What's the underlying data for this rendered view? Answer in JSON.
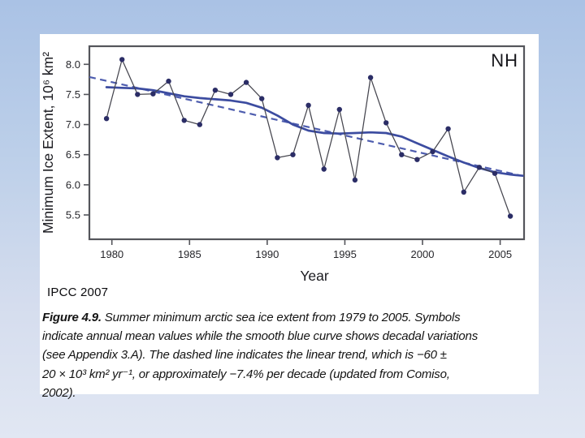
{
  "slide": {
    "credit": "IPCC 2007"
  },
  "chart_data": {
    "type": "line",
    "title": "",
    "region_label": "NH",
    "xlabel": "Year",
    "ylabel": "Minimum Ice Extent, 10⁶ km²",
    "x": [
      1979,
      1980,
      1981,
      1982,
      1983,
      1984,
      1985,
      1986,
      1987,
      1988,
      1989,
      1990,
      1991,
      1992,
      1993,
      1994,
      1995,
      1996,
      1997,
      1998,
      1999,
      2000,
      2001,
      2002,
      2003,
      2004,
      2005
    ],
    "series": [
      {
        "name": "annual mean minimum ice extent",
        "style": "black line with dark navy circle markers",
        "values": [
          7.1,
          8.08,
          7.5,
          7.51,
          7.72,
          7.07,
          7.0,
          7.57,
          7.5,
          7.7,
          7.43,
          6.45,
          6.5,
          7.32,
          6.26,
          7.25,
          6.08,
          7.78,
          7.03,
          6.5,
          6.42,
          6.55,
          6.93,
          5.88,
          6.29,
          6.19,
          5.48
        ]
      },
      {
        "name": "decadal variations (smooth blue curve)",
        "style": "thick solid blue curve",
        "points": [
          [
            1979,
            7.62
          ],
          [
            1980,
            7.61
          ],
          [
            1981,
            7.6
          ],
          [
            1982,
            7.57
          ],
          [
            1983,
            7.52
          ],
          [
            1984,
            7.47
          ],
          [
            1985,
            7.44
          ],
          [
            1986,
            7.42
          ],
          [
            1987,
            7.4
          ],
          [
            1988,
            7.36
          ],
          [
            1989,
            7.28
          ],
          [
            1990,
            7.15
          ],
          [
            1991,
            7.0
          ],
          [
            1992,
            6.9
          ],
          [
            1993,
            6.86
          ],
          [
            1994,
            6.85
          ],
          [
            1995,
            6.86
          ],
          [
            1996,
            6.87
          ],
          [
            1997,
            6.86
          ],
          [
            1998,
            6.8
          ],
          [
            1999,
            6.69
          ],
          [
            2000,
            6.58
          ],
          [
            2001,
            6.47
          ],
          [
            2002,
            6.37
          ],
          [
            2003,
            6.28
          ],
          [
            2004,
            6.21
          ],
          [
            2005,
            6.17
          ],
          [
            2005.8,
            6.15
          ]
        ]
      },
      {
        "name": "linear trend (dashed)",
        "style": "dashed blue straight line",
        "trend": {
          "start_year": 1978.55,
          "start_value": 7.79,
          "end_year": 2006.2,
          "end_value": 6.16,
          "slope_per_year_1e6_km2": -0.06
        }
      }
    ],
    "xticks": [
      1980,
      1985,
      1990,
      1995,
      2000,
      2005
    ],
    "yticks": [
      "5.5",
      "6.0",
      "6.5",
      "7.0",
      "7.5",
      "8.0"
    ],
    "ylim": [
      5.2,
      8.3
    ],
    "xlim": [
      1978.55,
      2006.55
    ],
    "grid": false,
    "legend": "none",
    "colors": {
      "annual_line": "#45454e",
      "marker": "#2b2d66",
      "smooth_curve": "#3c4ca0",
      "trend_dashed": "#4d5cae",
      "frame": "#54555b",
      "tick_text": "#26262b",
      "region_label": "#17171c"
    }
  },
  "caption": {
    "lines": [
      {
        "parts": [
          {
            "text": "Figure 4.9.",
            "bold": true
          },
          {
            "text": " Summer minimum arctic sea ice extent from 1979 to 2005. Symbols"
          }
        ]
      },
      {
        "parts": [
          {
            "text": "indicate annual mean values while the smooth blue curve shows decadal variations"
          }
        ]
      },
      {
        "parts": [
          {
            "text": "(see Appendix 3.A). The dashed line indicates the linear trend, which is −60 ±"
          }
        ]
      },
      {
        "parts": [
          {
            "text": "20 × 10³ km² yr⁻¹, or approximately −7.4% per decade (updated from Comiso,"
          }
        ]
      },
      {
        "parts": [
          {
            "text": "2002)."
          }
        ]
      }
    ]
  }
}
